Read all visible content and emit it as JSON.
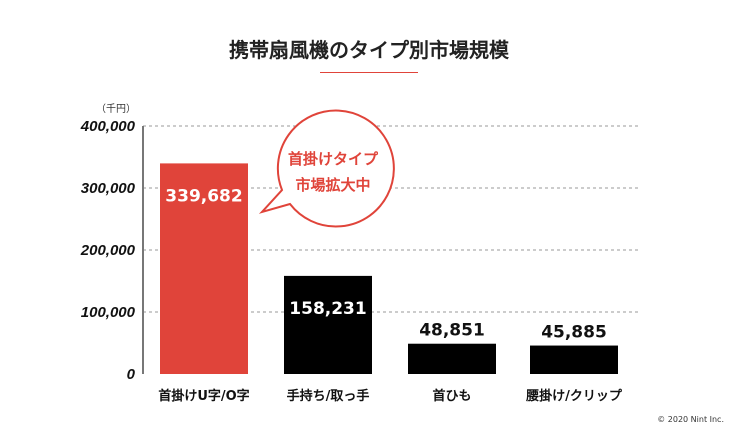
{
  "chart_data": {
    "type": "bar",
    "title": "携帯扇風機のタイプ別市場規模",
    "unit_label": "（千円）",
    "categories": [
      "首掛けU字/O字",
      "手持ち/取っ手",
      "首ひも",
      "腰掛け/クリップ"
    ],
    "values": [
      339682,
      158231,
      48851,
      45885
    ],
    "data_labels": [
      "339,682",
      "158,231",
      "48,851",
      "45,885"
    ],
    "bar_colors": [
      "#e0443a",
      "#000000",
      "#000000",
      "#000000"
    ],
    "label_colors": [
      "#ffffff",
      "#ffffff",
      "#111111",
      "#111111"
    ],
    "ylim": [
      0,
      400000
    ],
    "yticks": [
      0,
      100000,
      200000,
      300000,
      400000
    ],
    "ytick_labels": [
      "0",
      "100,000",
      "200,000",
      "300,000",
      "400,000"
    ],
    "grid": true,
    "annotation": {
      "line1": "首掛けタイプ",
      "line2": "市場拡大中",
      "color": "#e0443a"
    }
  },
  "copyright": "© 2020 Nint Inc."
}
